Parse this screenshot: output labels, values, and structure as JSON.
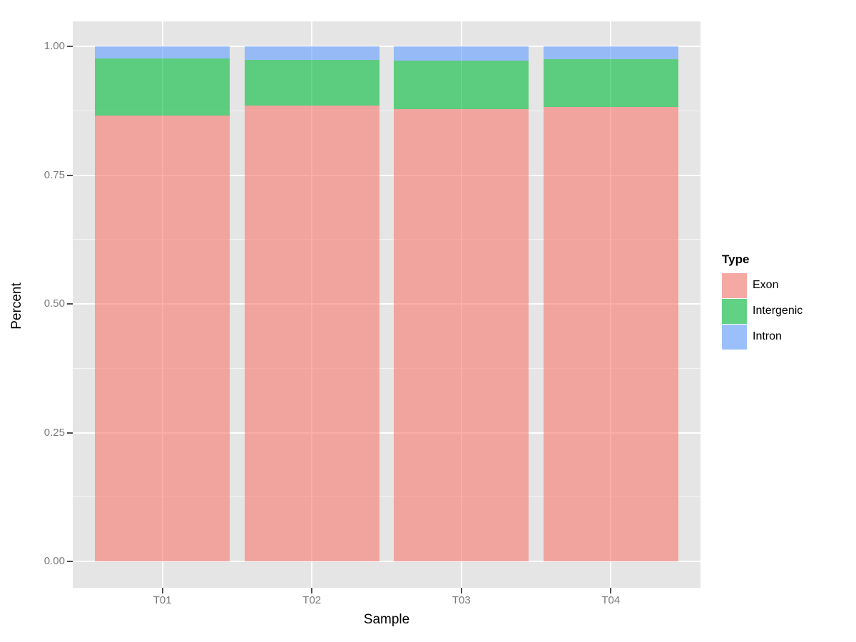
{
  "axes": {
    "x_title": "Sample",
    "y_title": "Percent"
  },
  "legend": {
    "title": "Type",
    "position": "right"
  },
  "colors": {
    "panel_background": "#E5E5E5",
    "gridline": "#ffffff",
    "tick_text": "#7A7A7A",
    "tick_mark": "#4D4D4D",
    "exon_fill_rgba": "rgba(248,118,109,0.6)",
    "intergenic_fill_rgba": "rgba(0,186,56,0.6)",
    "intron_fill_rgba": "rgba(97,156,255,0.6)",
    "legend_key_background": "#F2F2F2"
  },
  "chart_data": {
    "type": "bar",
    "subtype": "stacked-proportion",
    "categories": [
      "T01",
      "T02",
      "T03",
      "T04"
    ],
    "series": [
      {
        "name": "Exon",
        "color": "rgba(248,118,109,0.6)",
        "values": [
          0.866,
          0.885,
          0.878,
          0.882
        ]
      },
      {
        "name": "Intergenic",
        "color": "rgba(0,186,56,0.6)",
        "values": [
          0.11,
          0.088,
          0.094,
          0.093
        ]
      },
      {
        "name": "Intron",
        "color": "rgba(97,156,255,0.6)",
        "values": [
          0.024,
          0.027,
          0.028,
          0.025
        ]
      }
    ],
    "title": "",
    "xlabel": "Sample",
    "ylabel": "Percent",
    "ylim": [
      0,
      1
    ],
    "y_ticks": {
      "values": [
        0,
        0.25,
        0.5,
        0.75,
        1.0
      ],
      "labels": [
        "0.00",
        "0.25",
        "0.50",
        "0.75",
        "1.00"
      ]
    },
    "y_minor_ticks": [
      0.125,
      0.375,
      0.625,
      0.875
    ],
    "grid": "major-and-minor-white-on-grey",
    "legend_position": "right",
    "legend_title": "Type",
    "bar_width_fraction": 0.9
  }
}
